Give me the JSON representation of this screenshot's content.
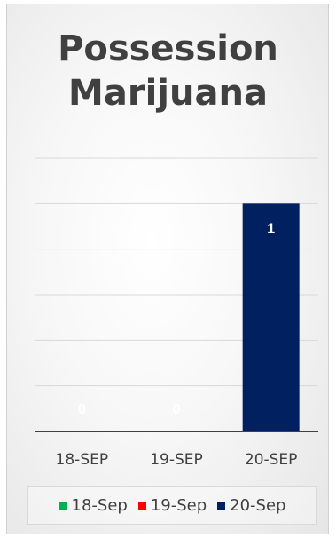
{
  "chart_data": {
    "type": "bar",
    "title_lines": [
      "Possession",
      "Marijuana"
    ],
    "categories": [
      "18-SEP",
      "19-SEP",
      "20-SEP"
    ],
    "values": [
      0,
      0,
      1
    ],
    "data_labels": [
      "0",
      "0",
      "1"
    ],
    "bar_color": "#002060",
    "ylim": [
      0,
      1.2
    ],
    "grid": true,
    "legend_position": "bottom",
    "legend": [
      {
        "label": "18-Sep",
        "color": "#00B050"
      },
      {
        "label": "19-Sep",
        "color": "#FF0000"
      },
      {
        "label": "20-Sep",
        "color": "#002060"
      }
    ]
  }
}
